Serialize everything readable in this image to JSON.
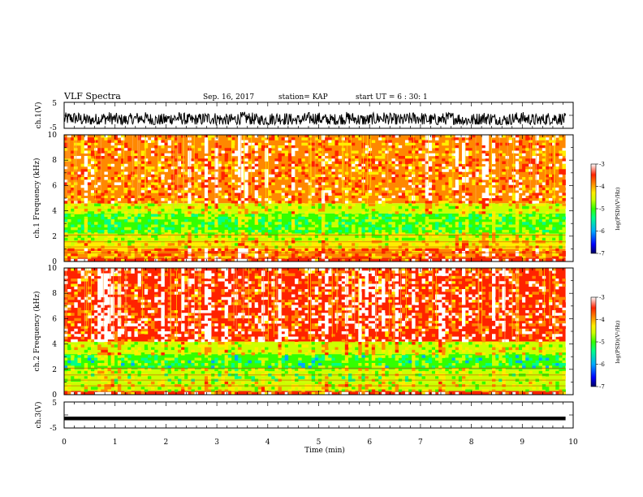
{
  "header": {
    "title": "VLF Spectra",
    "date": "Sep. 16, 2017",
    "station": "station= KAP",
    "start": "start UT = 6 : 30: 1"
  },
  "colors": {
    "spectrogram_scale": [
      "#000060",
      "#0000ff",
      "#00aaff",
      "#00ff88",
      "#33ff00",
      "#ccff00",
      "#ffee00",
      "#ff8800",
      "#ff2200",
      "#ffffff"
    ],
    "trace": "#000000"
  },
  "chart_data": [
    {
      "type": "line",
      "panel": "ch1-waveform",
      "ylabel": "ch.1(V)",
      "ylim": [
        -5,
        5
      ],
      "y_ticks": [
        "5",
        "-5"
      ],
      "xlim": [
        0,
        10
      ],
      "series": [
        {
          "y_mean": -1.5,
          "y_range": [
            -3.5,
            1.5
          ]
        }
      ],
      "x_end": 9.85
    },
    {
      "type": "heatmap",
      "panel": "ch1-spectrogram",
      "ylabel": "ch.1 Frequency (kHz)",
      "ylim": [
        0,
        10
      ],
      "y_ticks": [
        "0",
        "2",
        "4",
        "6",
        "8",
        "10"
      ],
      "xlim": [
        0,
        10
      ],
      "x_end": 9.85,
      "colorbar": {
        "label": "log(PSD)(V²/Hz)",
        "range": [
          -7,
          -3
        ],
        "ticks": [
          "-3",
          "-4",
          "-5",
          "-6",
          "-7"
        ]
      },
      "bands": [
        {
          "f": [
            0.0,
            0.3
          ],
          "log_psd": -3.6
        },
        {
          "f": [
            0.3,
            1.0
          ],
          "log_psd": -3.8
        },
        {
          "f": [
            1.0,
            1.6
          ],
          "log_psd": -4.5
        },
        {
          "f": [
            1.6,
            2.2
          ],
          "log_psd": -4.8
        },
        {
          "f": [
            2.2,
            3.8
          ],
          "log_psd": -5.3
        },
        {
          "f": [
            3.8,
            4.6
          ],
          "log_psd": -4.6
        },
        {
          "f": [
            4.6,
            10.0
          ],
          "log_psd": -3.7
        }
      ]
    },
    {
      "type": "heatmap",
      "panel": "ch2-spectrogram",
      "ylabel": "ch.2 Frequency (kHz)",
      "ylim": [
        0,
        10
      ],
      "y_ticks": [
        "0",
        "2",
        "4",
        "6",
        "8",
        "10"
      ],
      "xlim": [
        0,
        10
      ],
      "x_end": 9.85,
      "colorbar": {
        "label": "log(PSD)(V²/Hz)",
        "range": [
          -7,
          -3
        ],
        "ticks": [
          "-3",
          "-4",
          "-5",
          "-6",
          "-7"
        ]
      },
      "bands": [
        {
          "f": [
            0.0,
            0.3
          ],
          "log_psd": -3.6
        },
        {
          "f": [
            0.3,
            1.0
          ],
          "log_psd": -4.6
        },
        {
          "f": [
            1.0,
            1.6
          ],
          "log_psd": -5.0
        },
        {
          "f": [
            1.6,
            2.0
          ],
          "log_psd": -4.9
        },
        {
          "f": [
            2.0,
            3.2
          ],
          "log_psd": -5.4
        },
        {
          "f": [
            3.2,
            4.2
          ],
          "log_psd": -4.6
        },
        {
          "f": [
            4.2,
            10.0
          ],
          "log_psd": -3.6
        }
      ]
    },
    {
      "type": "line",
      "panel": "ch3-waveform",
      "ylabel": "ch.3(V)",
      "ylim": [
        -5,
        5
      ],
      "y_ticks": [
        "5",
        "-5"
      ],
      "xlim": [
        0,
        10
      ],
      "series": [
        {
          "y_mean": -1.3,
          "y_range": [
            -1.7,
            -0.9
          ]
        }
      ],
      "x_end": 9.85
    }
  ],
  "xaxis": {
    "label": "Time (min)",
    "ticks": [
      "0",
      "1",
      "2",
      "3",
      "4",
      "5",
      "6",
      "7",
      "8",
      "9",
      "10"
    ]
  }
}
